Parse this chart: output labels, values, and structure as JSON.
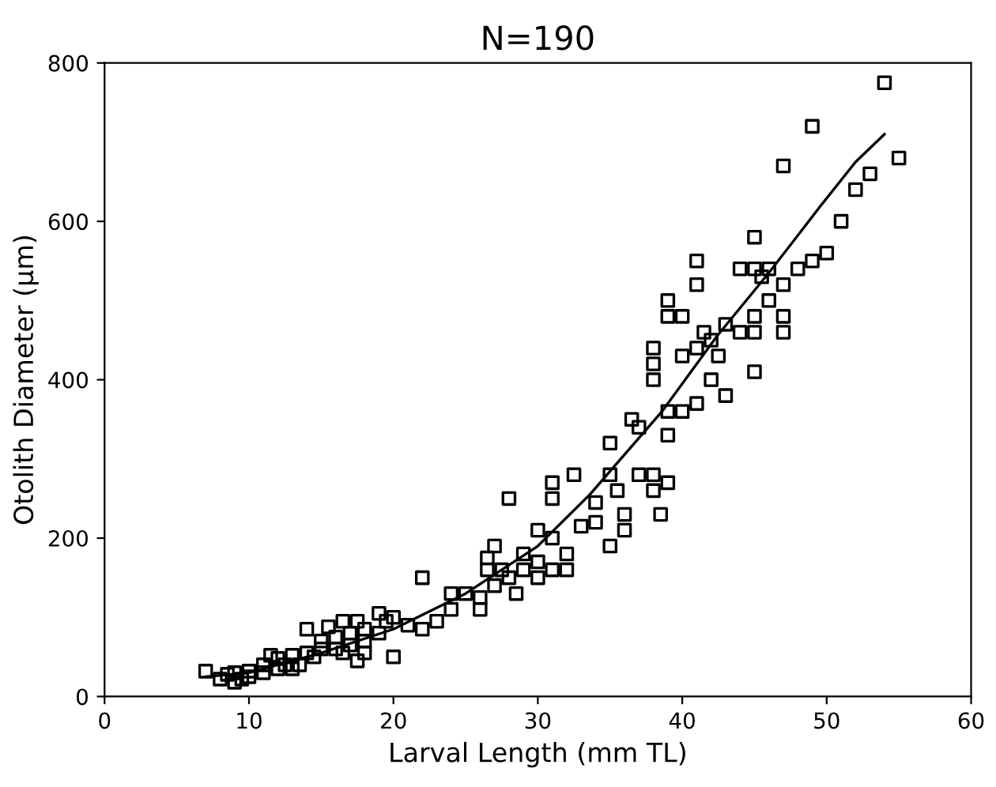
{
  "chart_data": {
    "type": "scatter",
    "title": "N=190",
    "xlabel": "Larval Length (mm TL)",
    "ylabel": "Otolith Diameter (µm)",
    "xlim": [
      0,
      60
    ],
    "ylim": [
      0,
      800
    ],
    "xticks": [
      0,
      10,
      20,
      30,
      40,
      50,
      60
    ],
    "yticks": [
      0,
      200,
      400,
      600,
      800
    ],
    "grid": false,
    "legend": false,
    "series": [
      {
        "marker": "square",
        "color": "#000000",
        "x": [
          7,
          8,
          8.5,
          9,
          9,
          9.5,
          10,
          10,
          11,
          11,
          11.5,
          12,
          12,
          12.5,
          13,
          13,
          13.5,
          14,
          14,
          14.5,
          15,
          15,
          15.5,
          16,
          16,
          16.5,
          16.5,
          17,
          17,
          17.5,
          17.5,
          18,
          18,
          18,
          19,
          19,
          19.5,
          20,
          20,
          21,
          22,
          22,
          23,
          24,
          24,
          25,
          26,
          26,
          26.5,
          26.5,
          27,
          27,
          27.5,
          28,
          28,
          28.5,
          29,
          29,
          30,
          30,
          30,
          31,
          31,
          31,
          31,
          32,
          32,
          32.5,
          33,
          34,
          34,
          35,
          35,
          35,
          35.5,
          36,
          36,
          36.5,
          37,
          37,
          38,
          38,
          38,
          38,
          38,
          38.5,
          39,
          39,
          39,
          39,
          39,
          40,
          40,
          40,
          41,
          41,
          41,
          41,
          41.5,
          42,
          42,
          42.5,
          43,
          43,
          44,
          44,
          45,
          45,
          45,
          45,
          45,
          45.5,
          46,
          46,
          47,
          47,
          47,
          47,
          48,
          49,
          49,
          50,
          51,
          52,
          53,
          54,
          55
        ],
        "values": [
          32,
          22,
          28,
          18,
          30,
          22,
          25,
          32,
          30,
          40,
          52,
          35,
          48,
          40,
          52,
          35,
          40,
          55,
          85,
          50,
          60,
          70,
          88,
          60,
          75,
          95,
          55,
          80,
          65,
          45,
          95,
          70,
          55,
          85,
          105,
          80,
          95,
          50,
          100,
          90,
          85,
          150,
          95,
          110,
          130,
          130,
          110,
          125,
          160,
          175,
          190,
          140,
          160,
          250,
          150,
          130,
          160,
          180,
          150,
          170,
          210,
          160,
          200,
          250,
          270,
          180,
          160,
          280,
          215,
          245,
          220,
          190,
          280,
          320,
          260,
          210,
          230,
          350,
          280,
          340,
          400,
          420,
          440,
          280,
          260,
          230,
          500,
          480,
          360,
          330,
          270,
          480,
          360,
          430,
          370,
          440,
          550,
          520,
          460,
          400,
          450,
          430,
          380,
          470,
          540,
          460,
          580,
          540,
          480,
          460,
          410,
          530,
          540,
          500,
          670,
          480,
          460,
          520,
          540,
          720,
          550,
          560,
          600,
          640,
          660,
          775,
          680
        ]
      },
      {
        "type": "line",
        "marker": "none",
        "line_style": "solid",
        "color": "#000000",
        "x": [
          7,
          10,
          15,
          20,
          25,
          30,
          33.6,
          38.6,
          42.4,
          46,
          49.6,
          52,
          54
        ],
        "values": [
          25,
          30,
          55,
          85,
          130,
          190,
          255,
          360,
          455,
          535,
          620,
          675,
          710
        ]
      }
    ]
  }
}
